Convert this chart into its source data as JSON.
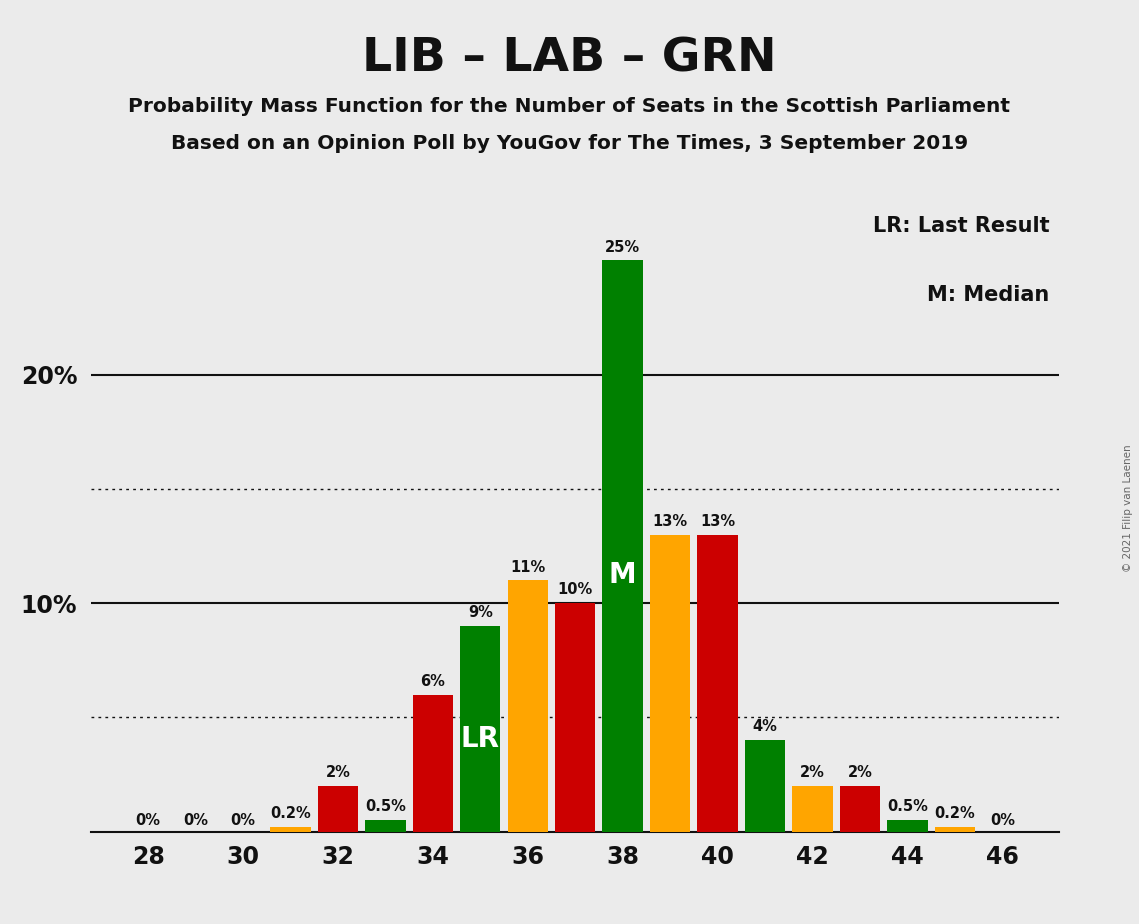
{
  "title": "LIB – LAB – GRN",
  "subtitle1": "Probability Mass Function for the Number of Seats in the Scottish Parliament",
  "subtitle2": "Based on an Opinion Poll by YouGov for The Times, 3 September 2019",
  "copyright": "© 2021 Filip van Laenen",
  "legend_lr": "LR: Last Result",
  "legend_m": "M: Median",
  "background_color": "#ebebeb",
  "seats": [
    28,
    29,
    30,
    31,
    32,
    33,
    34,
    35,
    36,
    37,
    38,
    39,
    40,
    41,
    42,
    43,
    44,
    45,
    46
  ],
  "values": [
    0.0,
    0.0,
    0.0,
    0.2,
    2.0,
    0.5,
    6.0,
    9.0,
    11.0,
    10.0,
    25.0,
    13.0,
    13.0,
    4.0,
    2.0,
    2.0,
    0.5,
    0.2,
    0.0
  ],
  "colors": [
    "#ffa500",
    "#cc0000",
    "#008000",
    "#ffa500",
    "#cc0000",
    "#008000",
    "#cc0000",
    "#008000",
    "#ffa500",
    "#cc0000",
    "#008000",
    "#ffa500",
    "#cc0000",
    "#008000",
    "#ffa500",
    "#cc0000",
    "#008000",
    "#ffa500",
    "#008000"
  ],
  "labels": [
    "0%",
    "0%",
    "0%",
    "0.2%",
    "2%",
    "0.5%",
    "6%",
    "9%",
    "11%",
    "10%",
    "25%",
    "13%",
    "13%",
    "4%",
    "2%",
    "2%",
    "0.5%",
    "0.2%",
    "0%"
  ],
  "show_label": [
    true,
    true,
    true,
    true,
    true,
    true,
    true,
    true,
    true,
    true,
    true,
    true,
    true,
    true,
    true,
    true,
    true,
    true,
    true
  ],
  "lr_seat": 35,
  "median_seat": 38,
  "dotted_lines": [
    5.0,
    15.0
  ],
  "solid_lines": [
    10.0,
    20.0
  ],
  "xtick_positions": [
    28,
    30,
    32,
    34,
    36,
    38,
    40,
    42,
    44,
    46
  ],
  "ylim_max": 27.5,
  "bar_width": 0.85
}
